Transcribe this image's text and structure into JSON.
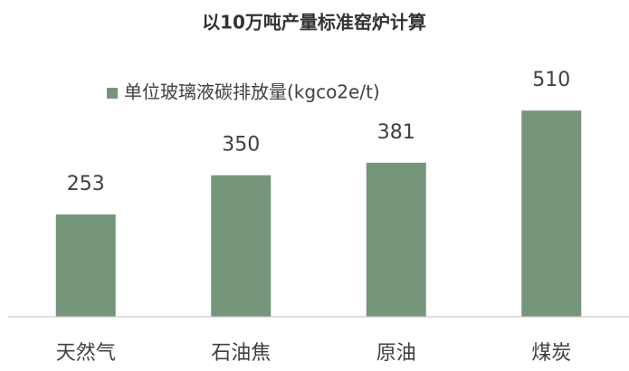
{
  "chart_data": {
    "type": "bar",
    "title": "以10万吨产量标准窑炉计算",
    "categories": [
      "天然气",
      "石油焦",
      "原油",
      "煤炭"
    ],
    "series": [
      {
        "name": "单位玻璃液碳排放量(kgco2e/t)",
        "color": "#76967b",
        "values": [
          253,
          350,
          381,
          510
        ]
      }
    ],
    "ylim": [
      0,
      600
    ],
    "legend": "top"
  }
}
